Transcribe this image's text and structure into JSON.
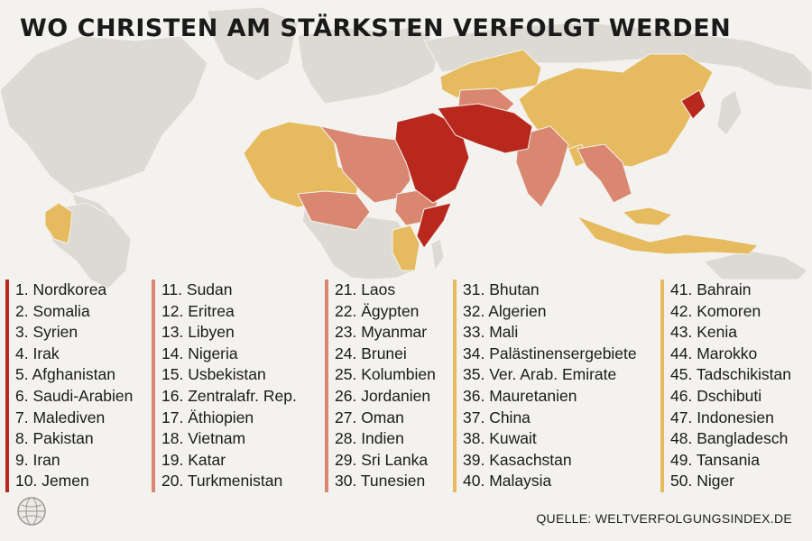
{
  "title": "WO CHRISTEN AM STÄRKSTEN VERFOLGT WERDEN",
  "source": "QUELLE: WELTVERFOLGUNGSINDEX.DE",
  "icons": {
    "globe": "globe-icon"
  },
  "colors": {
    "background": "#f3f2ee",
    "land_neutral": "#dcdad3",
    "rank_1_10": "#b8281d",
    "rank_11_20": "#d98770",
    "rank_21_30": "#d98770",
    "rank_31_40": "#e6bb5f",
    "rank_41_50": "#e6bb5f"
  },
  "legend": {
    "groups": [
      {
        "color": "#b8281d",
        "items": [
          "1. Nordkorea",
          "2. Somalia",
          "3. Syrien",
          "4. Irak",
          "5. Afghanistan",
          "6. Saudi-Arabien",
          "7. Malediven",
          "8. Pakistan",
          "9. Iran",
          "10. Jemen"
        ]
      },
      {
        "color": "#d98770",
        "items": [
          "11. Sudan",
          "12. Eritrea",
          "13. Libyen",
          "14. Nigeria",
          "15. Usbekistan",
          "16. Zentralafr. Rep.",
          "17. Äthiopien",
          "18. Vietnam",
          "19. Katar",
          "20. Turkmenistan"
        ]
      },
      {
        "color": "#d98770",
        "items": [
          "21. Laos",
          "22. Ägypten",
          "23. Myanmar",
          "24. Brunei",
          "25. Kolumbien",
          "26. Jordanien",
          "27. Oman",
          "28. Indien",
          "29. Sri Lanka",
          "30. Tunesien"
        ]
      },
      {
        "color": "#e6bb5f",
        "items": [
          "31. Bhutan",
          "32. Algerien",
          "33. Mali",
          "34. Palästinensergebiete",
          "35. Ver. Arab. Emirate",
          "36. Mauretanien",
          "37. China",
          "38. Kuwait",
          "39. Kasachstan",
          "40. Malaysia"
        ]
      },
      {
        "color": "#e6bb5f",
        "items": [
          "41. Bahrain",
          "42. Komoren",
          "43. Kenia",
          "44. Marokko",
          "45. Tadschikistan",
          "46. Dschibuti",
          "47. Indonesien",
          "48. Bangladesch",
          "49. Tansania",
          "50. Niger"
        ]
      }
    ]
  }
}
